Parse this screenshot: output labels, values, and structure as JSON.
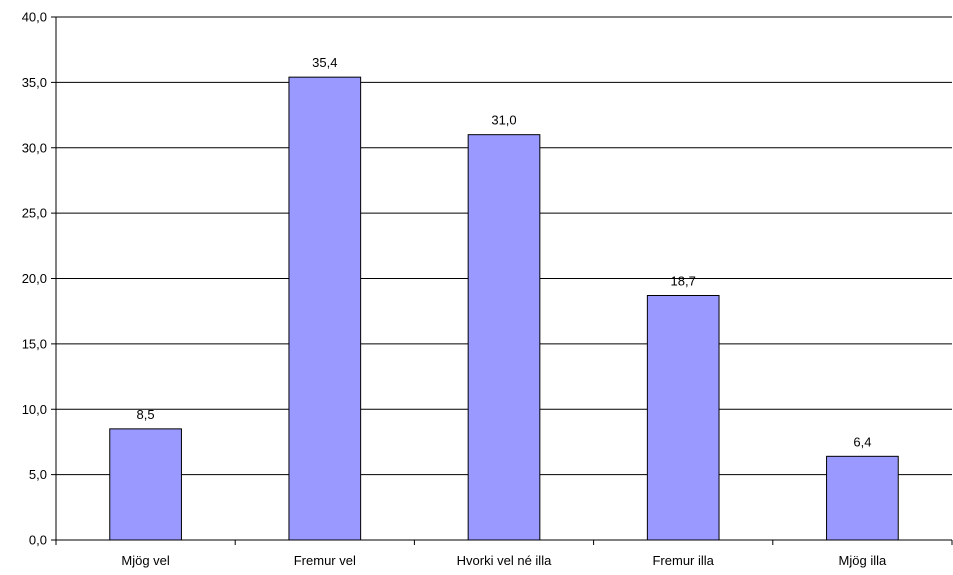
{
  "chart_data": {
    "type": "bar",
    "categories": [
      "Mjög vel",
      "Fremur vel",
      "Hvorki vel né illa",
      "Fremur illa",
      "Mjög illa"
    ],
    "values": [
      8.5,
      35.4,
      31.0,
      18.7,
      6.4
    ],
    "data_labels": [
      "8,5",
      "35,4",
      "31,0",
      "18,7",
      "6,4"
    ],
    "title": "",
    "xlabel": "",
    "ylabel": "",
    "ylim": [
      0,
      40
    ],
    "yticks": [
      0,
      5,
      10,
      15,
      20,
      25,
      30,
      35,
      40
    ],
    "ytick_labels": [
      "0,0",
      "5,0",
      "10,0",
      "15,0",
      "20,0",
      "25,0",
      "30,0",
      "35,0",
      "40,0"
    ],
    "grid": true,
    "legend": "none",
    "bar_color": "#9999ff",
    "bar_edge_color": "#000000",
    "grid_color": "#000000"
  }
}
